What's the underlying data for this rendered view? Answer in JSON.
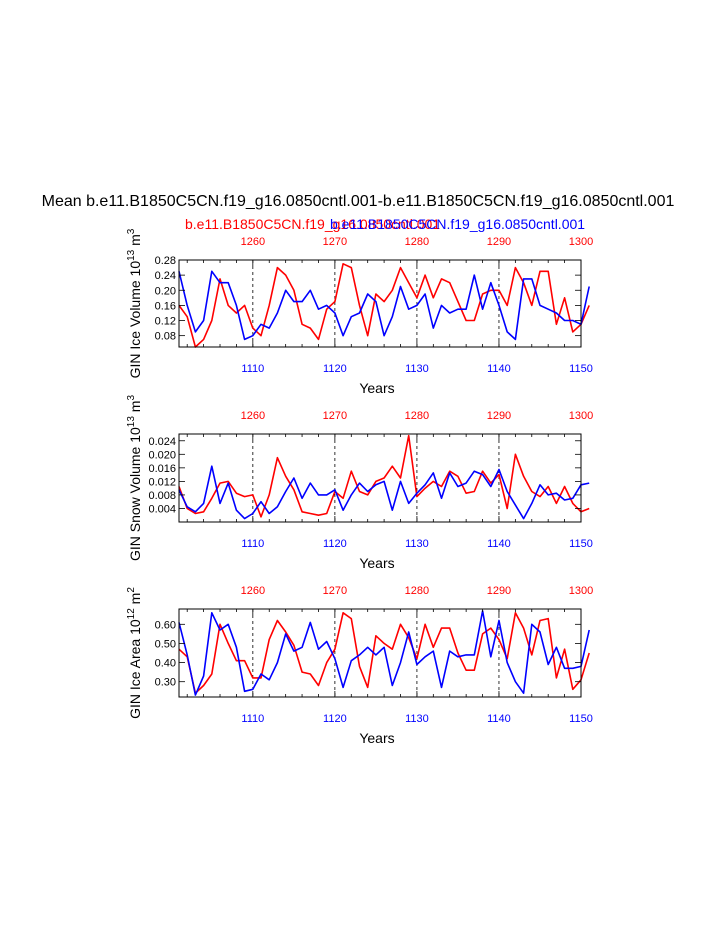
{
  "chart_data": {
    "title": "Mean b.e11.B1850C5CN.f19_g16.0850cntl.001-b.e11.B1850C5CN.f19_g16.0850cntl.001",
    "subtitle_red": "b.e11.B1850C5CN.f19_g16.0850cntl.001",
    "subtitle_blue": "b.e11.B1850C5CN.f19_g16.0850cntl.001",
    "series_colors": {
      "red": "#ff0000",
      "blue": "#0000ff"
    },
    "red_axis_ticks": [
      "1260",
      "1270",
      "1280",
      "1290",
      "1300"
    ],
    "blue_axis_ticks": [
      "1110",
      "1120",
      "1130",
      "1140",
      "1150"
    ],
    "panels": [
      {
        "type": "line",
        "ylabel": "GIN Ice Volume 10",
        "ylabel_exp": "13",
        "ylabel_unit": " m",
        "ylabel_unit_exp": "3",
        "xlabel": "Years",
        "ylim": [
          0.05,
          0.28
        ],
        "yticks": [
          "0.08",
          "0.12",
          "0.16",
          "0.20",
          "0.24",
          "0.28"
        ],
        "series": [
          {
            "name": "red",
            "axis": "top",
            "x_start": 1251,
            "values": [
              0.16,
              0.13,
              0.05,
              0.07,
              0.12,
              0.23,
              0.16,
              0.14,
              0.16,
              0.1,
              0.08,
              0.16,
              0.26,
              0.24,
              0.2,
              0.11,
              0.1,
              0.07,
              0.15,
              0.17,
              0.27,
              0.26,
              0.16,
              0.08,
              0.19,
              0.17,
              0.2,
              0.26,
              0.22,
              0.18,
              0.24,
              0.18,
              0.23,
              0.22,
              0.17,
              0.12,
              0.12,
              0.19,
              0.2,
              0.2,
              0.16,
              0.26,
              0.22,
              0.16,
              0.25,
              0.25,
              0.11,
              0.18,
              0.09,
              0.11,
              0.16
            ]
          },
          {
            "name": "blue",
            "axis": "bottom",
            "x_start": 1101,
            "values": [
              0.25,
              0.16,
              0.09,
              0.12,
              0.25,
              0.22,
              0.22,
              0.16,
              0.07,
              0.08,
              0.11,
              0.1,
              0.14,
              0.2,
              0.17,
              0.17,
              0.2,
              0.15,
              0.16,
              0.14,
              0.08,
              0.13,
              0.14,
              0.19,
              0.17,
              0.08,
              0.13,
              0.21,
              0.15,
              0.16,
              0.19,
              0.1,
              0.16,
              0.14,
              0.15,
              0.15,
              0.24,
              0.15,
              0.22,
              0.16,
              0.09,
              0.07,
              0.23,
              0.23,
              0.16,
              0.15,
              0.14,
              0.12,
              0.12,
              0.11,
              0.21
            ]
          }
        ]
      },
      {
        "type": "line",
        "ylabel": "GIN Snow Volume 10",
        "ylabel_exp": "13",
        "ylabel_unit": " m",
        "ylabel_unit_exp": "3",
        "xlabel": "Years",
        "ylim": [
          0.0,
          0.026
        ],
        "yticks": [
          "0.004",
          "0.008",
          "0.012",
          "0.016",
          "0.020",
          "0.024"
        ],
        "series": [
          {
            "name": "red",
            "axis": "top",
            "x_start": 1251,
            "values": [
              0.0105,
              0.004,
              0.0025,
              0.003,
              0.007,
              0.0115,
              0.012,
              0.0085,
              0.0075,
              0.008,
              0.0015,
              0.008,
              0.019,
              0.0135,
              0.0095,
              0.003,
              0.0025,
              0.002,
              0.0025,
              0.009,
              0.007,
              0.015,
              0.009,
              0.008,
              0.012,
              0.013,
              0.0165,
              0.013,
              0.0255,
              0.0075,
              0.01,
              0.012,
              0.0105,
              0.015,
              0.0135,
              0.0085,
              0.009,
              0.015,
              0.0115,
              0.014,
              0.004,
              0.02,
              0.0135,
              0.009,
              0.0075,
              0.0105,
              0.0055,
              0.0105,
              0.0055,
              0.003,
              0.004
            ]
          },
          {
            "name": "blue",
            "axis": "bottom",
            "x_start": 1101,
            "values": [
              0.0095,
              0.0045,
              0.003,
              0.0055,
              0.0165,
              0.0055,
              0.0115,
              0.0035,
              0.001,
              0.0025,
              0.006,
              0.0025,
              0.0045,
              0.009,
              0.013,
              0.007,
              0.0115,
              0.008,
              0.008,
              0.0095,
              0.0035,
              0.008,
              0.0115,
              0.009,
              0.011,
              0.012,
              0.0035,
              0.012,
              0.0055,
              0.0085,
              0.011,
              0.0145,
              0.007,
              0.0145,
              0.0105,
              0.0115,
              0.015,
              0.014,
              0.0105,
              0.0155,
              0.009,
              0.005,
              0.001,
              0.0055,
              0.011,
              0.008,
              0.0085,
              0.0065,
              0.007,
              0.011,
              0.0115
            ]
          }
        ]
      },
      {
        "type": "line",
        "ylabel": "GIN Ice Area 10",
        "ylabel_exp": "12",
        "ylabel_unit": " m",
        "ylabel_unit_exp": "2",
        "xlabel": "Years",
        "ylim": [
          0.22,
          0.68
        ],
        "yticks": [
          "0.30",
          "0.40",
          "0.50",
          "0.60"
        ],
        "series": [
          {
            "name": "red",
            "axis": "top",
            "x_start": 1251,
            "values": [
              0.47,
              0.43,
              0.24,
              0.28,
              0.34,
              0.6,
              0.5,
              0.41,
              0.41,
              0.32,
              0.32,
              0.52,
              0.62,
              0.56,
              0.49,
              0.35,
              0.34,
              0.28,
              0.4,
              0.47,
              0.66,
              0.63,
              0.38,
              0.27,
              0.54,
              0.5,
              0.47,
              0.6,
              0.53,
              0.42,
              0.6,
              0.48,
              0.58,
              0.58,
              0.45,
              0.36,
              0.36,
              0.55,
              0.58,
              0.52,
              0.42,
              0.66,
              0.58,
              0.44,
              0.62,
              0.63,
              0.32,
              0.47,
              0.26,
              0.31,
              0.45
            ]
          },
          {
            "name": "blue",
            "axis": "bottom",
            "x_start": 1101,
            "values": [
              0.61,
              0.44,
              0.23,
              0.33,
              0.66,
              0.57,
              0.6,
              0.48,
              0.25,
              0.26,
              0.34,
              0.31,
              0.4,
              0.55,
              0.46,
              0.48,
              0.61,
              0.47,
              0.51,
              0.42,
              0.27,
              0.41,
              0.44,
              0.48,
              0.44,
              0.48,
              0.28,
              0.4,
              0.56,
              0.39,
              0.43,
              0.46,
              0.27,
              0.46,
              0.43,
              0.44,
              0.44,
              0.67,
              0.43,
              0.62,
              0.4,
              0.3,
              0.24,
              0.6,
              0.56,
              0.39,
              0.48,
              0.37,
              0.37,
              0.38,
              0.57
            ]
          }
        ]
      }
    ]
  }
}
